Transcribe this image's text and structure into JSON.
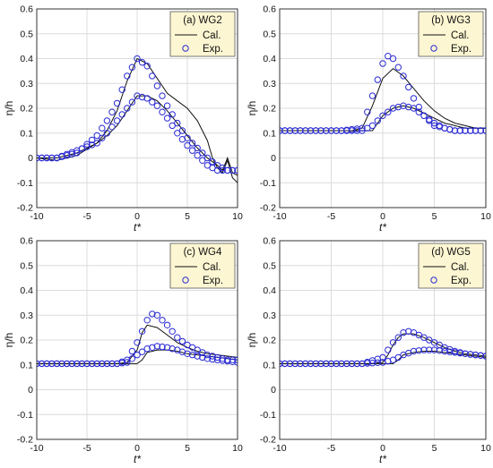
{
  "chart_data": [
    {
      "type": "line",
      "panel_label": "(a) WG2",
      "xlabel": "t*",
      "ylabel": "η/h",
      "xlim": [
        -10,
        10
      ],
      "ylim": [
        -0.2,
        0.6
      ],
      "xticks": [
        "-10",
        "-5",
        "0",
        "5",
        "10"
      ],
      "yticks": [
        "-0.2",
        "-0.1",
        "0",
        "0.1",
        "0.2",
        "0.3",
        "0.4",
        "0.5",
        "0.6"
      ],
      "grid": true,
      "legend_position": "top-right",
      "series": [
        {
          "name": "Cal.",
          "style": "line",
          "x": [
            -10,
            -8,
            -6,
            -4,
            -3,
            -2,
            -1,
            0,
            1,
            2,
            3,
            4,
            5,
            6,
            7,
            7.5,
            8,
            8.5,
            9,
            9.5,
            10
          ],
          "y": [
            0,
            -0.01,
            0.01,
            0.06,
            0.11,
            0.19,
            0.31,
            0.4,
            0.38,
            0.32,
            0.26,
            0.23,
            0.2,
            0.15,
            0.07,
            0.0,
            -0.04,
            -0.06,
            -0.01,
            -0.08,
            -0.1
          ]
        },
        {
          "name": "Cal.",
          "style": "line",
          "x": [
            -10,
            -8,
            -6,
            -4,
            -3,
            -2,
            -1,
            0,
            1,
            2,
            3,
            4,
            5,
            6,
            7,
            8,
            8.5,
            9,
            9.5,
            10
          ],
          "y": [
            0,
            0,
            0.02,
            0.06,
            0.09,
            0.13,
            0.19,
            0.25,
            0.25,
            0.23,
            0.19,
            0.14,
            0.09,
            0.04,
            0.0,
            -0.03,
            -0.05,
            0.0,
            -0.06,
            -0.07
          ]
        },
        {
          "name": "Exp.",
          "style": "markers",
          "x": [
            -10,
            -8,
            -6,
            -4,
            -3,
            -2,
            -1,
            0,
            1,
            2,
            3,
            4,
            5,
            6,
            7,
            8,
            9,
            10
          ],
          "y": [
            0,
            0,
            0.02,
            0.09,
            0.15,
            0.22,
            0.33,
            0.4,
            0.37,
            0.29,
            0.21,
            0.14,
            0.08,
            0.04,
            0,
            -0.03,
            -0.05,
            -0.05
          ]
        },
        {
          "name": "Exp.",
          "style": "markers",
          "x": [
            -10,
            -8,
            -6,
            -4,
            -3,
            -2,
            -1,
            0,
            1,
            2,
            3,
            4,
            5,
            6,
            7,
            8,
            9,
            10
          ],
          "y": [
            0,
            0,
            0.03,
            0.06,
            0.1,
            0.15,
            0.2,
            0.25,
            0.24,
            0.21,
            0.16,
            0.1,
            0.05,
            0.01,
            -0.03,
            -0.05,
            -0.05,
            -0.05
          ]
        }
      ]
    },
    {
      "type": "line",
      "panel_label": "(b) WG3",
      "xlabel": "t*",
      "ylabel": "",
      "xlim": [
        -10,
        10
      ],
      "ylim": [
        -0.2,
        0.6
      ],
      "xticks": [
        "-10",
        "-5",
        "0",
        "5",
        "10"
      ],
      "yticks": [
        "-0.2",
        "-0.1",
        "0",
        "0.1",
        "0.2",
        "0.3",
        "0.4",
        "0.5",
        "0.6"
      ],
      "grid": true,
      "legend_position": "top-right",
      "series": [
        {
          "name": "Cal.",
          "style": "line",
          "x": [
            -10,
            -3,
            -2,
            -1,
            0,
            1,
            2,
            3,
            4,
            5,
            6,
            7,
            8,
            9,
            10
          ],
          "y": [
            0.11,
            0.11,
            0.12,
            0.21,
            0.32,
            0.36,
            0.33,
            0.28,
            0.23,
            0.19,
            0.16,
            0.14,
            0.13,
            0.12,
            0.12
          ]
        },
        {
          "name": "Cal.",
          "style": "line",
          "x": [
            -10,
            -3,
            -1,
            -0.5,
            0,
            1,
            2,
            3,
            4,
            5,
            6,
            7,
            8,
            9,
            10
          ],
          "y": [
            0.11,
            0.11,
            0.11,
            0.14,
            0.17,
            0.2,
            0.21,
            0.2,
            0.18,
            0.16,
            0.14,
            0.13,
            0.12,
            0.12,
            0.12
          ]
        },
        {
          "name": "Exp.",
          "style": "markers",
          "x": [
            -10,
            -8,
            -6,
            -4,
            -2,
            -1,
            0,
            0.5,
            1,
            2,
            3,
            4,
            5,
            6,
            7,
            8,
            9,
            10
          ],
          "y": [
            0.11,
            0.11,
            0.11,
            0.11,
            0.12,
            0.25,
            0.38,
            0.41,
            0.4,
            0.33,
            0.24,
            0.17,
            0.13,
            0.12,
            0.11,
            0.11,
            0.11,
            0.11
          ]
        },
        {
          "name": "Exp.",
          "style": "markers",
          "x": [
            -10,
            -8,
            -6,
            -4,
            -2,
            -1,
            0,
            1,
            2,
            3,
            4,
            5,
            6,
            7,
            8,
            9,
            10
          ],
          "y": [
            0.11,
            0.11,
            0.11,
            0.11,
            0.11,
            0.13,
            0.17,
            0.2,
            0.21,
            0.2,
            0.17,
            0.14,
            0.12,
            0.11,
            0.11,
            0.11,
            0.11
          ]
        }
      ]
    },
    {
      "type": "line",
      "panel_label": "(c) WG4",
      "xlabel": "t*",
      "ylabel": "η/h",
      "xlim": [
        -10,
        10
      ],
      "ylim": [
        -0.2,
        0.6
      ],
      "xticks": [
        "-10",
        "-5",
        "0",
        "5",
        "10"
      ],
      "yticks": [
        "-0.2",
        "-0.1",
        "0",
        "0.1",
        "0.2",
        "0.3",
        "0.4",
        "0.5",
        "0.6"
      ],
      "grid": true,
      "legend_position": "top-right",
      "series": [
        {
          "name": "Cal.",
          "style": "line",
          "x": [
            -10,
            -2,
            -1,
            0,
            0.5,
            1,
            2,
            3,
            4,
            5,
            6,
            7,
            8,
            9,
            10
          ],
          "y": [
            0.105,
            0.105,
            0.11,
            0.16,
            0.23,
            0.26,
            0.25,
            0.22,
            0.19,
            0.17,
            0.155,
            0.145,
            0.14,
            0.135,
            0.13
          ]
        },
        {
          "name": "Cal.",
          "style": "line",
          "x": [
            -10,
            -1,
            0,
            0.5,
            1,
            2,
            3,
            4,
            5,
            6,
            7,
            8,
            9,
            10
          ],
          "y": [
            0.105,
            0.105,
            0.105,
            0.12,
            0.15,
            0.16,
            0.16,
            0.155,
            0.145,
            0.14,
            0.135,
            0.13,
            0.125,
            0.12
          ]
        },
        {
          "name": "Exp.",
          "style": "markers",
          "x": [
            -10,
            -8,
            -6,
            -4,
            -2,
            -1,
            0,
            1,
            1.5,
            2,
            3,
            4,
            5,
            6,
            7,
            8,
            9,
            10
          ],
          "y": [
            0.105,
            0.105,
            0.105,
            0.105,
            0.105,
            0.12,
            0.19,
            0.28,
            0.305,
            0.3,
            0.26,
            0.21,
            0.18,
            0.16,
            0.14,
            0.13,
            0.12,
            0.12
          ]
        },
        {
          "name": "Exp.",
          "style": "markers",
          "x": [
            -10,
            -8,
            -6,
            -4,
            -2,
            -1,
            0,
            1,
            2,
            3,
            4,
            5,
            6,
            7,
            8,
            9,
            10
          ],
          "y": [
            0.105,
            0.105,
            0.105,
            0.105,
            0.105,
            0.11,
            0.14,
            0.165,
            0.175,
            0.17,
            0.16,
            0.145,
            0.135,
            0.125,
            0.12,
            0.115,
            0.11
          ]
        }
      ]
    },
    {
      "type": "line",
      "panel_label": "(d) WG5",
      "xlabel": "t*",
      "ylabel": "",
      "xlim": [
        -10,
        10
      ],
      "ylim": [
        -0.2,
        0.6
      ],
      "xticks": [
        "-10",
        "-5",
        "0",
        "5",
        "10"
      ],
      "yticks": [
        "-0.2",
        "-0.1",
        "0",
        "0.1",
        "0.2",
        "0.3",
        "0.4",
        "0.5",
        "0.6"
      ],
      "grid": true,
      "legend_position": "top-right",
      "series": [
        {
          "name": "Cal.",
          "style": "line",
          "x": [
            -10,
            -1,
            0,
            0.5,
            1,
            1.5,
            2,
            3,
            4,
            5,
            6,
            7,
            8,
            9,
            10
          ],
          "y": [
            0.105,
            0.105,
            0.11,
            0.14,
            0.18,
            0.21,
            0.225,
            0.225,
            0.21,
            0.19,
            0.17,
            0.155,
            0.145,
            0.14,
            0.135
          ]
        },
        {
          "name": "Cal.",
          "style": "line",
          "x": [
            -10,
            0,
            1,
            1.5,
            2,
            3,
            4,
            5,
            6,
            7,
            8,
            9,
            10
          ],
          "y": [
            0.105,
            0.105,
            0.105,
            0.12,
            0.14,
            0.15,
            0.155,
            0.155,
            0.15,
            0.145,
            0.14,
            0.135,
            0.13
          ]
        },
        {
          "name": "Exp.",
          "style": "markers",
          "x": [
            -10,
            -8,
            -6,
            -4,
            -2,
            0,
            1,
            2,
            2.5,
            3,
            4,
            5,
            6,
            7,
            8,
            9,
            10
          ],
          "y": [
            0.105,
            0.105,
            0.105,
            0.105,
            0.105,
            0.13,
            0.19,
            0.23,
            0.235,
            0.23,
            0.21,
            0.19,
            0.17,
            0.155,
            0.145,
            0.14,
            0.135
          ]
        },
        {
          "name": "Exp.",
          "style": "markers",
          "x": [
            -10,
            -8,
            -6,
            -4,
            -2,
            0,
            1,
            2,
            3,
            4,
            5,
            6,
            7,
            8,
            9,
            10
          ],
          "y": [
            0.105,
            0.105,
            0.105,
            0.105,
            0.105,
            0.11,
            0.12,
            0.14,
            0.155,
            0.16,
            0.16,
            0.155,
            0.15,
            0.145,
            0.14,
            0.135
          ]
        }
      ]
    }
  ],
  "legend": {
    "cal": "Cal.",
    "exp": "Exp."
  },
  "colors": {
    "calc": "#111111",
    "exp": "#2a2ad4",
    "legend_bg": "#fdf6d2",
    "grid": "#dcdcdc"
  }
}
